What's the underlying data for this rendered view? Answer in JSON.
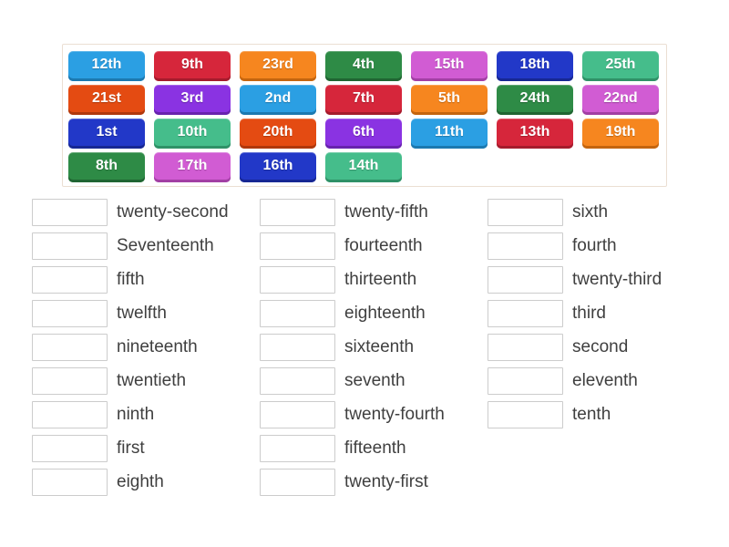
{
  "palette": {
    "lightblue": {
      "bg": "#2b9fe3",
      "shade": "#1c79b0"
    },
    "crimson": {
      "bg": "#d6263b",
      "shade": "#a51b2c"
    },
    "orange": {
      "bg": "#f6861f",
      "shade": "#c4650f"
    },
    "green": {
      "bg": "#2e8b46",
      "shade": "#206532"
    },
    "orchid": {
      "bg": "#d15cd3",
      "shade": "#a23fa4"
    },
    "darkblue": {
      "bg": "#2238c8",
      "shade": "#172793"
    },
    "seagreen": {
      "bg": "#45bd8b",
      "shade": "#2f9167"
    },
    "orangered": {
      "bg": "#e44b12",
      "shade": "#b0380c"
    },
    "purple": {
      "bg": "#8a33e2",
      "shade": "#6823ae"
    }
  },
  "bank": {
    "tiles": [
      {
        "label": "12th",
        "color": "lightblue"
      },
      {
        "label": "9th",
        "color": "crimson"
      },
      {
        "label": "23rd",
        "color": "orange"
      },
      {
        "label": "4th",
        "color": "green"
      },
      {
        "label": "15th",
        "color": "orchid"
      },
      {
        "label": "18th",
        "color": "darkblue"
      },
      {
        "label": "25th",
        "color": "seagreen"
      },
      {
        "label": "21st",
        "color": "orangered"
      },
      {
        "label": "3rd",
        "color": "purple"
      },
      {
        "label": "2nd",
        "color": "lightblue"
      },
      {
        "label": "7th",
        "color": "crimson"
      },
      {
        "label": "5th",
        "color": "orange"
      },
      {
        "label": "24th",
        "color": "green"
      },
      {
        "label": "22nd",
        "color": "orchid"
      },
      {
        "label": "1st",
        "color": "darkblue"
      },
      {
        "label": "10th",
        "color": "seagreen"
      },
      {
        "label": "20th",
        "color": "orangered"
      },
      {
        "label": "6th",
        "color": "purple"
      },
      {
        "label": "11th",
        "color": "lightblue"
      },
      {
        "label": "13th",
        "color": "crimson"
      },
      {
        "label": "19th",
        "color": "orange"
      },
      {
        "label": "8th",
        "color": "green"
      },
      {
        "label": "17th",
        "color": "orchid"
      },
      {
        "label": "16th",
        "color": "darkblue"
      },
      {
        "label": "14th",
        "color": "seagreen"
      }
    ]
  },
  "match": {
    "columns": [
      {
        "rows": [
          "twenty-second",
          "Seventeenth",
          "fifth",
          "twelfth",
          "nineteenth",
          "twentieth",
          "ninth",
          "first",
          "eighth"
        ]
      },
      {
        "rows": [
          "twenty-fifth",
          "fourteenth",
          "thirteenth",
          "eighteenth",
          "sixteenth",
          "seventh",
          "twenty-fourth",
          "fifteenth",
          "twenty-first"
        ]
      },
      {
        "rows": [
          "sixth",
          "fourth",
          "twenty-third",
          "third",
          "second",
          "eleventh",
          "tenth"
        ]
      }
    ]
  }
}
